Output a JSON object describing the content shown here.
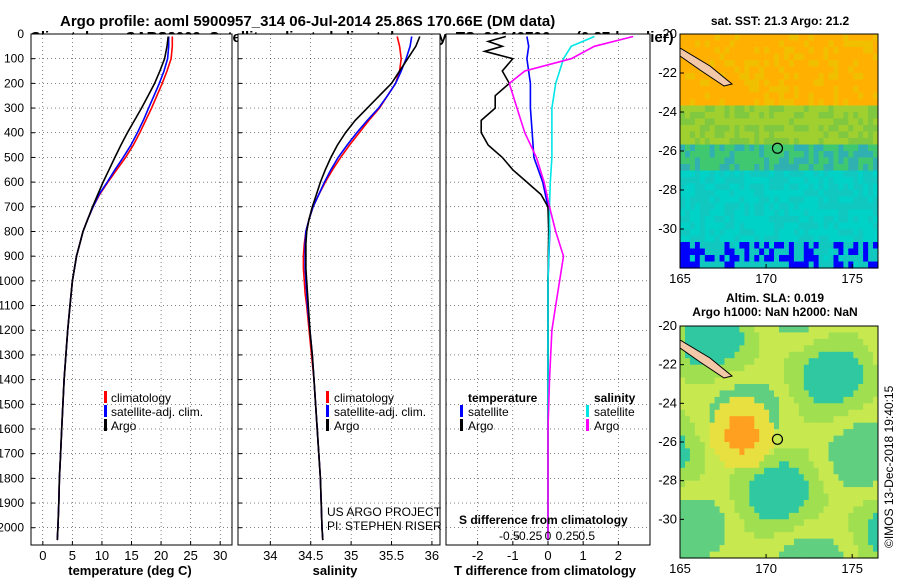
{
  "header": {
    "title_line1": "Argo profile: aoml 5900957_314 06-Jul-2014 25.86S 170.66E (DM data)",
    "title_line2": "Climatology: CARS2009. Satellite-adjusted climatology: synTS_20140706.nc (0.37d earlier)"
  },
  "colors": {
    "climatology": "#ff0000",
    "satellite": "#0000ff",
    "argo": "#000000",
    "argo_salinity_diff": "#ff00ff",
    "satellite_salinity_diff": "#00e6e6"
  },
  "chart_data": [
    {
      "type": "line",
      "id": "temperature",
      "xlabel": "temperature (deg C)",
      "xlim": [
        -2,
        32
      ],
      "xticks": [
        0,
        5,
        10,
        15,
        20,
        25,
        30
      ],
      "ylim": [
        2070,
        0
      ],
      "yticks": [
        0,
        100,
        200,
        300,
        400,
        500,
        600,
        700,
        800,
        900,
        1000,
        1100,
        1200,
        1300,
        1400,
        1500,
        1600,
        1700,
        1800,
        1900,
        2000
      ],
      "legend": [
        "climatology",
        "satellite-adj. clim.",
        "Argo"
      ],
      "series": [
        {
          "name": "climatology",
          "color": "#ff0000",
          "depth": [
            10,
            50,
            100,
            150,
            200,
            250,
            300,
            350,
            400,
            450,
            500,
            550,
            600,
            650,
            700,
            750,
            800,
            900,
            1000,
            1100,
            1200,
            1300,
            1400,
            1500,
            1600,
            1700,
            1800,
            1900,
            2000,
            2050
          ],
          "values": [
            21.9,
            21.9,
            21.7,
            21.0,
            20.2,
            19.3,
            18.4,
            17.4,
            16.4,
            15.3,
            14.0,
            12.5,
            11.0,
            9.6,
            8.5,
            7.6,
            6.8,
            5.7,
            5.0,
            4.6,
            4.2,
            3.9,
            3.6,
            3.4,
            3.2,
            3.0,
            2.8,
            2.7,
            2.55,
            2.45
          ]
        },
        {
          "name": "satellite-adj. clim.",
          "color": "#0000ff",
          "depth": [
            10,
            50,
            100,
            150,
            200,
            250,
            300,
            350,
            400,
            450,
            500,
            550,
            600,
            650,
            700,
            750,
            800,
            900,
            1000,
            1100,
            1200,
            1300,
            1400,
            1500,
            1600,
            1700,
            1800,
            1900,
            2000,
            2050
          ],
          "values": [
            21.3,
            21.3,
            21.1,
            20.5,
            19.7,
            18.8,
            17.9,
            17.0,
            16.0,
            14.9,
            13.6,
            12.2,
            10.9,
            9.5,
            8.5,
            7.6,
            6.8,
            5.7,
            5.0,
            4.6,
            4.2,
            3.9,
            3.6,
            3.4,
            3.2,
            3.0,
            2.8,
            2.7,
            2.55,
            2.45
          ]
        },
        {
          "name": "Argo",
          "color": "#000000",
          "depth": [
            10,
            50,
            100,
            150,
            200,
            250,
            300,
            350,
            400,
            450,
            500,
            550,
            600,
            650,
            700,
            750,
            800,
            900,
            1000,
            1100,
            1200,
            1300,
            1400,
            1500,
            1600,
            1700,
            1800,
            1900,
            2000,
            2050
          ],
          "values": [
            21.2,
            21.0,
            20.6,
            19.8,
            18.9,
            17.8,
            16.7,
            15.5,
            14.3,
            13.2,
            12.2,
            11.2,
            10.2,
            9.3,
            8.4,
            7.6,
            6.8,
            5.7,
            5.0,
            4.6,
            4.2,
            3.9,
            3.6,
            3.4,
            3.2,
            3.0,
            2.8,
            2.7,
            2.55,
            2.45
          ]
        }
      ]
    },
    {
      "type": "line",
      "id": "salinity",
      "xlabel": "salinity",
      "xlim": [
        33.6,
        36.1
      ],
      "xticks": [
        34,
        34.5,
        35,
        35.5,
        36
      ],
      "xticklabels": [
        "34",
        "34.5",
        "35",
        "35.5",
        "36"
      ],
      "ylim": [
        2070,
        0
      ],
      "legend": [
        "climatology",
        "satellite-adj. clim.",
        "Argo"
      ],
      "series": [
        {
          "name": "climatology",
          "color": "#ff0000",
          "depth": [
            10,
            50,
            100,
            150,
            200,
            250,
            300,
            350,
            400,
            450,
            500,
            550,
            600,
            650,
            700,
            750,
            800,
            850,
            900,
            950,
            1000,
            1050,
            1100,
            1200,
            1300,
            1400,
            1500,
            1600,
            1700,
            1800,
            1900,
            2000,
            2050
          ],
          "values": [
            35.57,
            35.6,
            35.62,
            35.6,
            35.55,
            35.45,
            35.35,
            35.22,
            35.1,
            34.98,
            34.87,
            34.77,
            34.68,
            34.6,
            34.53,
            34.48,
            34.44,
            34.42,
            34.41,
            34.41,
            34.42,
            34.43,
            34.45,
            34.48,
            34.51,
            34.54,
            34.56,
            34.58,
            34.6,
            34.62,
            34.63,
            34.64,
            34.65
          ]
        },
        {
          "name": "satellite-adj. clim.",
          "color": "#0000ff",
          "depth": [
            10,
            50,
            100,
            150,
            200,
            250,
            300,
            350,
            400,
            450,
            500,
            550,
            600,
            650,
            700,
            750,
            800,
            850,
            900,
            950,
            1000,
            1050,
            1100,
            1200,
            1300,
            1400,
            1500,
            1600,
            1700,
            1800,
            1900,
            2000,
            2050
          ],
          "values": [
            35.75,
            35.73,
            35.68,
            35.62,
            35.55,
            35.45,
            35.34,
            35.2,
            35.07,
            34.95,
            34.84,
            34.75,
            34.67,
            34.6,
            34.53,
            34.48,
            34.44,
            34.43,
            34.43,
            34.43,
            34.44,
            34.45,
            34.46,
            34.49,
            34.52,
            34.54,
            34.56,
            34.58,
            34.6,
            34.62,
            34.63,
            34.64,
            34.65
          ]
        },
        {
          "name": "Argo",
          "color": "#000000",
          "depth": [
            10,
            50,
            100,
            150,
            200,
            250,
            300,
            350,
            400,
            450,
            500,
            550,
            600,
            650,
            700,
            750,
            800,
            850,
            900,
            950,
            1000,
            1050,
            1100,
            1200,
            1300,
            1400,
            1500,
            1600,
            1700,
            1800,
            1900,
            2000,
            2050
          ],
          "values": [
            35.85,
            35.8,
            35.7,
            35.6,
            35.5,
            35.35,
            35.2,
            35.05,
            34.93,
            34.83,
            34.75,
            34.68,
            34.62,
            34.57,
            34.52,
            34.48,
            34.45,
            34.44,
            34.44,
            34.44,
            34.45,
            34.46,
            34.47,
            34.49,
            34.52,
            34.54,
            34.56,
            34.58,
            34.6,
            34.62,
            34.63,
            34.64,
            34.65
          ]
        }
      ]
    },
    {
      "type": "line",
      "id": "difference",
      "xlabel": "T difference from climatology",
      "sublabel": "S difference from climatology",
      "xlim": [
        -2.9,
        2.9
      ],
      "xticks": [
        -2,
        -1,
        0,
        1,
        2
      ],
      "s_ticks": [
        -0.5,
        -0.25,
        0,
        0.25,
        0.5
      ],
      "s_ticklabels": [
        "-0.5",
        "-0.25",
        "0",
        "0.25",
        "0.5"
      ],
      "ylim": [
        2070,
        0
      ],
      "legend_temperature": {
        "heading": "temperature",
        "items": [
          "satellite",
          "Argo"
        ]
      },
      "legend_salinity": {
        "heading": "salinity",
        "items": [
          "satellite",
          "Argo"
        ]
      },
      "series": [
        {
          "name": "temperature satellite",
          "color": "#0000ff",
          "depth": [
            10,
            50,
            100,
            200,
            300,
            400,
            500,
            600,
            700,
            800,
            1000,
            1200,
            1400,
            1600,
            1800,
            2000,
            2050
          ],
          "values": [
            -0.6,
            -0.55,
            -0.6,
            -0.5,
            -0.5,
            -0.45,
            -0.4,
            -0.15,
            0,
            0.05,
            0,
            0,
            0,
            0,
            0,
            0,
            0
          ]
        },
        {
          "name": "temperature Argo",
          "color": "#000000",
          "depth": [
            10,
            30,
            50,
            70,
            100,
            150,
            200,
            250,
            300,
            350,
            400,
            450,
            500,
            550,
            600,
            650,
            700,
            800,
            1000,
            1200,
            1600,
            2000,
            2050
          ],
          "values": [
            -1.2,
            -1.7,
            -1.3,
            -1.8,
            -1.0,
            -1.3,
            -1.1,
            -1.5,
            -1.5,
            -1.9,
            -1.9,
            -1.7,
            -1.3,
            -1.0,
            -0.6,
            -0.2,
            0,
            0.02,
            0,
            0,
            0,
            0,
            0
          ]
        },
        {
          "name": "salinity satellite",
          "color": "#00e6e6",
          "depth": [
            10,
            50,
            100,
            200,
            300,
            400,
            500,
            600,
            700,
            800,
            1000,
            1200,
            1400,
            1600,
            1800,
            2000,
            2050
          ],
          "values": [
            0.6,
            0.3,
            0.2,
            0.1,
            0.05,
            0.05,
            0.05,
            0.03,
            0.02,
            0.02,
            0.0,
            0.0,
            0.0,
            0.0,
            0.0,
            0.0,
            0.0
          ]
        },
        {
          "name": "salinity Argo",
          "color": "#ff00ff",
          "depth": [
            10,
            50,
            100,
            150,
            200,
            300,
            400,
            500,
            600,
            700,
            800,
            900,
            1000,
            1100,
            1200,
            1400,
            1600,
            2000,
            2050
          ],
          "values": [
            1.1,
            0.6,
            0.3,
            -0.3,
            -0.5,
            -0.4,
            -0.3,
            -0.15,
            -0.05,
            0.02,
            0.1,
            0.2,
            0.15,
            0.1,
            0.05,
            0.02,
            0.0,
            0.0,
            0.0
          ]
        }
      ]
    },
    {
      "type": "heatmap",
      "id": "sst_map",
      "title": "sat. SST: 21.3 Argo: 21.2",
      "xticks": [
        165,
        170,
        175
      ],
      "yticks": [
        -20,
        -22,
        -24,
        -26,
        -28,
        -30
      ],
      "xlim": [
        165,
        176.5
      ],
      "ylim": [
        -32,
        -20
      ]
    },
    {
      "type": "heatmap",
      "id": "sla_map",
      "title": "Altim. SLA: 0.019",
      "subtitle": "Argo h1000: NaN h2000: NaN",
      "xticks": [
        165,
        170,
        175
      ],
      "yticks": [
        -20,
        -22,
        -24,
        -26,
        -28,
        -30
      ],
      "xlim": [
        165,
        176.5
      ],
      "ylim": [
        -32,
        -20
      ]
    }
  ],
  "annotations": {
    "project_line1": "US ARGO PROJECT",
    "project_line2": "PI: STEPHEN RISER",
    "imos_credit": "©IMOS 13-Dec-2018 19:40:15"
  }
}
